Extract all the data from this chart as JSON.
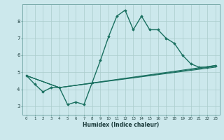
{
  "xlabel": "Humidex (Indice chaleur)",
  "bg_color": "#cce8ec",
  "grid_color": "#aacccc",
  "line_color": "#1a7060",
  "xlim": [
    -0.5,
    23.5
  ],
  "ylim": [
    2.5,
    9.0
  ],
  "yticks": [
    3,
    4,
    5,
    6,
    7,
    8
  ],
  "xticks": [
    0,
    1,
    2,
    3,
    4,
    5,
    6,
    7,
    8,
    9,
    10,
    11,
    12,
    13,
    14,
    15,
    16,
    17,
    18,
    19,
    20,
    21,
    22,
    23
  ],
  "lines": [
    {
      "x": [
        0,
        1,
        2,
        3,
        4,
        5,
        6,
        7,
        8,
        9,
        10,
        11,
        12,
        13,
        14,
        15,
        16,
        17,
        18,
        19,
        20,
        21,
        22,
        23
      ],
      "y": [
        4.8,
        4.3,
        3.85,
        4.1,
        4.1,
        3.1,
        3.25,
        3.1,
        4.4,
        5.7,
        7.1,
        8.3,
        8.65,
        7.5,
        8.3,
        7.5,
        7.5,
        7.0,
        6.7,
        6.0,
        5.5,
        5.3,
        5.3,
        5.4
      ],
      "marker": true,
      "linewidth": 1.0
    },
    {
      "x": [
        0,
        4,
        23
      ],
      "y": [
        4.8,
        4.1,
        5.4
      ],
      "marker": false,
      "linewidth": 0.8
    },
    {
      "x": [
        0,
        4,
        23
      ],
      "y": [
        4.8,
        4.1,
        5.35
      ],
      "marker": false,
      "linewidth": 0.8
    },
    {
      "x": [
        0,
        4,
        23
      ],
      "y": [
        4.8,
        4.1,
        5.3
      ],
      "marker": false,
      "linewidth": 0.8
    }
  ]
}
